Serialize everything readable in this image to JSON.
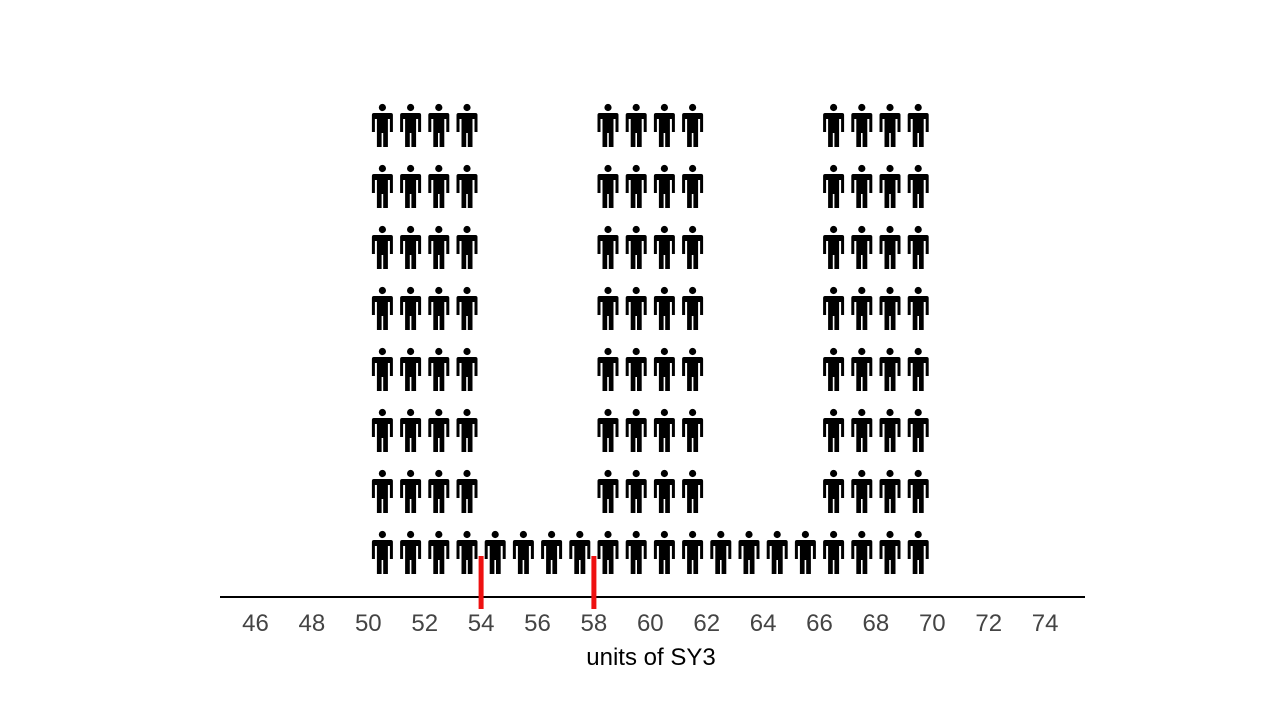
{
  "chart_data": {
    "type": "pictograph",
    "xlabel": "units of SY3",
    "xlim": [
      45,
      75
    ],
    "x_ticks": [
      46,
      48,
      50,
      52,
      54,
      56,
      58,
      60,
      62,
      64,
      66,
      68,
      70,
      72,
      74
    ],
    "icon": "person-icon",
    "icon_color": "#000000",
    "columns": [
      {
        "x": 50.5,
        "count": 8
      },
      {
        "x": 51.5,
        "count": 8
      },
      {
        "x": 52.5,
        "count": 8
      },
      {
        "x": 53.5,
        "count": 8
      },
      {
        "x": 54.5,
        "count": 1
      },
      {
        "x": 55.5,
        "count": 1
      },
      {
        "x": 56.5,
        "count": 1
      },
      {
        "x": 57.5,
        "count": 1
      },
      {
        "x": 58.5,
        "count": 8
      },
      {
        "x": 59.5,
        "count": 8
      },
      {
        "x": 60.5,
        "count": 8
      },
      {
        "x": 61.5,
        "count": 8
      },
      {
        "x": 62.5,
        "count": 1
      },
      {
        "x": 63.5,
        "count": 1
      },
      {
        "x": 64.5,
        "count": 1
      },
      {
        "x": 65.5,
        "count": 1
      },
      {
        "x": 66.5,
        "count": 8
      },
      {
        "x": 67.5,
        "count": 8
      },
      {
        "x": 68.5,
        "count": 8
      },
      {
        "x": 69.5,
        "count": 8
      }
    ],
    "markers": [
      {
        "x": 54,
        "color": "#ee1111"
      },
      {
        "x": 58,
        "color": "#ee1111"
      }
    ],
    "grid": false,
    "legend": "none"
  }
}
